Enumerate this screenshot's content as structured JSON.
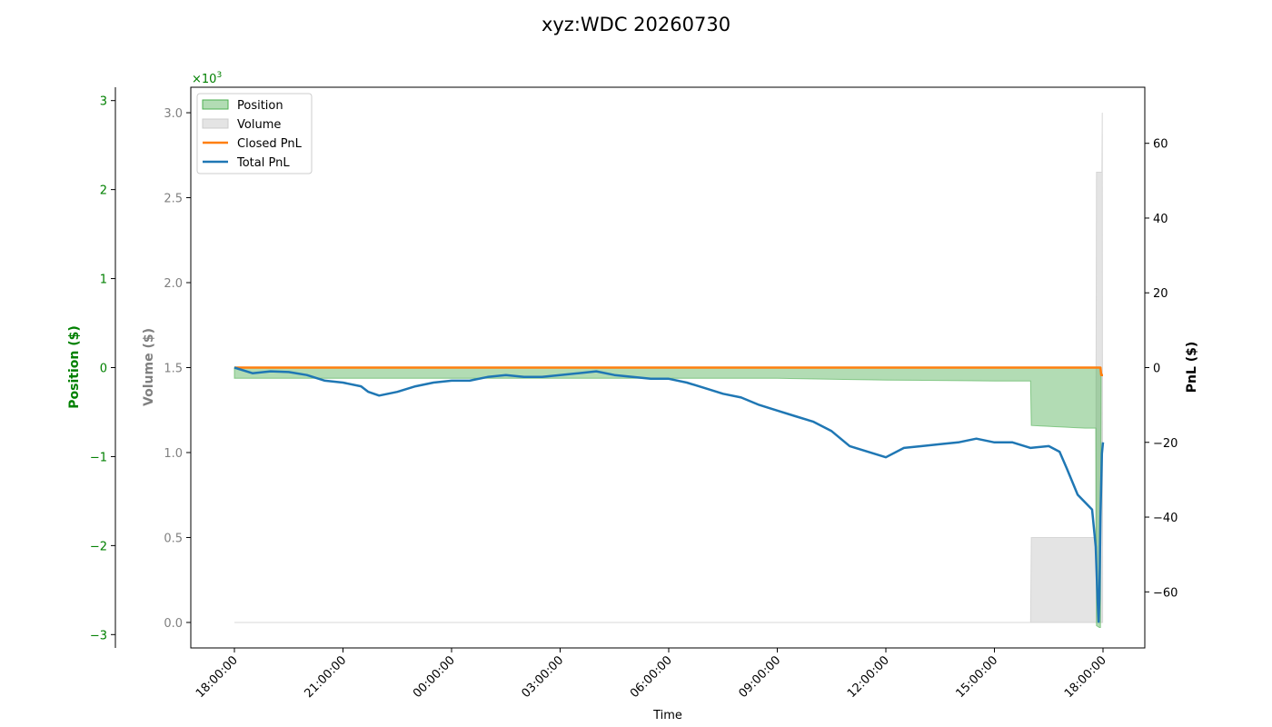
{
  "chart_data": {
    "type": "line",
    "title": "xyz:WDC 20260730",
    "xlabel": "Time",
    "x_ticks": [
      "18:00:00",
      "21:00:00",
      "00:00:00",
      "03:00:00",
      "06:00:00",
      "09:00:00",
      "12:00:00",
      "15:00:00",
      "18:00:00"
    ],
    "x_range_hours": [
      0,
      24
    ],
    "axes": {
      "position": {
        "label": "Position ($)",
        "color": "#008000",
        "ylim": [
          -3.15,
          3.15
        ],
        "ticks": [
          "3",
          "2",
          "1",
          "0",
          "−1",
          "−2",
          "−3"
        ],
        "tick_values": [
          3,
          2,
          1,
          0,
          -1,
          -2,
          -3
        ],
        "scale_label": "×10",
        "scale_exp": "3"
      },
      "volume": {
        "label": "Volume ($)",
        "color": "#808080",
        "ylim": [
          -0.15,
          3.15
        ],
        "ticks": [
          "3.0",
          "2.5",
          "2.0",
          "1.5",
          "1.0",
          "0.5",
          "0.0"
        ],
        "tick_values": [
          3.0,
          2.5,
          2.0,
          1.5,
          1.0,
          0.5,
          0.0
        ]
      },
      "pnl": {
        "label": "PnL ($)",
        "color": "#000000",
        "ylim": [
          -75,
          75
        ],
        "ticks": [
          "60",
          "40",
          "20",
          "0",
          "−20",
          "−40",
          "−60"
        ],
        "tick_values": [
          60,
          40,
          20,
          0,
          -20,
          -40,
          -60
        ]
      }
    },
    "legend": {
      "placement": "upper-left",
      "entries": [
        {
          "label": "Position",
          "kind": "fill",
          "color": "#4caf50"
        },
        {
          "label": "Volume",
          "kind": "fill",
          "color": "#d9d9d9"
        },
        {
          "label": "Closed PnL",
          "kind": "line",
          "color": "#ff7f0e"
        },
        {
          "label": "Total PnL",
          "kind": "line",
          "color": "#1f77b4"
        }
      ]
    },
    "series": [
      {
        "name": "Position",
        "axis": "position",
        "color": "#4caf50",
        "points": [
          [
            0,
            -0.12
          ],
          [
            3,
            -0.12
          ],
          [
            6,
            -0.12
          ],
          [
            9,
            -0.12
          ],
          [
            12,
            -0.12
          ],
          [
            13.5,
            -0.12
          ],
          [
            15,
            -0.12
          ],
          [
            18,
            -0.14
          ],
          [
            21,
            -0.15
          ],
          [
            22.0,
            -0.15
          ],
          [
            22.02,
            -0.65
          ],
          [
            23.5,
            -0.68
          ],
          [
            23.8,
            -0.68
          ],
          [
            23.82,
            -2.9
          ],
          [
            23.9,
            -2.92
          ],
          [
            23.93,
            -2.92
          ],
          [
            23.95,
            0
          ]
        ]
      },
      {
        "name": "Volume",
        "axis": "volume",
        "color": "#d9d9d9",
        "points": [
          [
            0,
            0.0
          ],
          [
            22.0,
            0.0
          ],
          [
            22.02,
            0.5
          ],
          [
            23.8,
            0.5
          ],
          [
            23.82,
            2.65
          ],
          [
            23.97,
            2.65
          ],
          [
            23.98,
            3.0
          ],
          [
            23.99,
            0.0
          ]
        ]
      },
      {
        "name": "Closed PnL",
        "axis": "pnl",
        "color": "#ff7f0e",
        "points": [
          [
            0,
            0
          ],
          [
            23.93,
            0
          ],
          [
            23.95,
            -2
          ],
          [
            24,
            -2
          ]
        ]
      },
      {
        "name": "Total PnL",
        "axis": "pnl",
        "color": "#1f77b4",
        "points": [
          [
            0,
            0
          ],
          [
            0.5,
            -1.5
          ],
          [
            1,
            -1
          ],
          [
            1.5,
            -1.2
          ],
          [
            2,
            -2
          ],
          [
            2.5,
            -3.5
          ],
          [
            3,
            -4
          ],
          [
            3.5,
            -5
          ],
          [
            3.7,
            -6.5
          ],
          [
            4,
            -7.5
          ],
          [
            4.5,
            -6.5
          ],
          [
            5,
            -5
          ],
          [
            5.5,
            -4
          ],
          [
            6,
            -3.5
          ],
          [
            6.5,
            -3.5
          ],
          [
            7,
            -2.5
          ],
          [
            7.5,
            -2
          ],
          [
            8,
            -2.5
          ],
          [
            8.5,
            -2.5
          ],
          [
            9,
            -2
          ],
          [
            9.5,
            -1.5
          ],
          [
            10,
            -1
          ],
          [
            10.5,
            -2
          ],
          [
            11,
            -2.5
          ],
          [
            11.5,
            -3
          ],
          [
            12,
            -3
          ],
          [
            12.5,
            -4
          ],
          [
            13,
            -5.5
          ],
          [
            13.5,
            -7
          ],
          [
            14,
            -8
          ],
          [
            14.5,
            -10
          ],
          [
            15,
            -11.5
          ],
          [
            15.5,
            -13
          ],
          [
            16,
            -14.5
          ],
          [
            16.5,
            -17
          ],
          [
            17,
            -21
          ],
          [
            17.5,
            -22.5
          ],
          [
            18,
            -24
          ],
          [
            18.5,
            -21.5
          ],
          [
            19,
            -21
          ],
          [
            19.5,
            -20.5
          ],
          [
            20,
            -20
          ],
          [
            20.5,
            -19
          ],
          [
            21,
            -20
          ],
          [
            21.5,
            -20
          ],
          [
            22,
            -21.5
          ],
          [
            22.5,
            -21
          ],
          [
            22.8,
            -22.5
          ],
          [
            23,
            -27
          ],
          [
            23.3,
            -34
          ],
          [
            23.5,
            -36
          ],
          [
            23.7,
            -38
          ],
          [
            23.8,
            -48
          ],
          [
            23.85,
            -62
          ],
          [
            23.88,
            -68
          ],
          [
            23.9,
            -62
          ],
          [
            23.93,
            -40
          ],
          [
            23.97,
            -23
          ],
          [
            24,
            -20
          ]
        ]
      }
    ]
  }
}
